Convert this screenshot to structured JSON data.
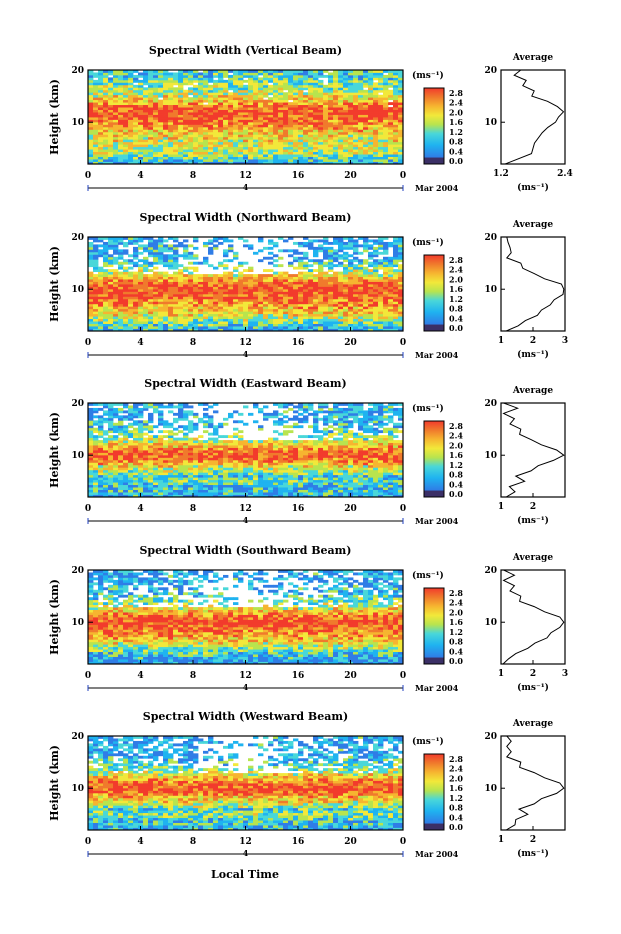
{
  "colors": {
    "background": "#ffffff",
    "frame": "#000000",
    "colorscale": [
      "#3b2f66",
      "#2f7de6",
      "#1fb3f0",
      "#49d7d9",
      "#b8e44e",
      "#f2e83a",
      "#f6b530",
      "#f07a2c",
      "#f23b2c"
    ]
  },
  "common": {
    "ylabel": "Height (km)",
    "colorbar_unit": "(ms⁻¹)",
    "date_label": "Mar 2004",
    "day_label": "4",
    "xlabel": "Local Time",
    "avg_title": "Average",
    "avg_unit": "(ms⁻¹)"
  },
  "chart_data": [
    {
      "type": "heatmap",
      "title": "Spectral Width (Vertical Beam)",
      "xlabel": "Local Time",
      "ylabel": "Height (km)",
      "xlim": [
        0,
        24
      ],
      "ylim": [
        2,
        20
      ],
      "x_ticks": [
        "0",
        "4",
        "8",
        "12",
        "16",
        "20",
        "0"
      ],
      "y_ticks": [
        "10",
        "20"
      ],
      "colorbar": {
        "ticks": [
          "0.0",
          "0.4",
          "0.8",
          "1.2",
          "1.6",
          "2.0",
          "2.4",
          "2.8"
        ]
      },
      "profile": {
        "title": "Average",
        "xlim": [
          1.2,
          2.4
        ],
        "x_ticks": [
          "1.2",
          "2.4"
        ],
        "height": [
          2,
          4,
          6,
          8,
          9,
          10,
          11,
          12,
          13,
          14,
          15,
          16,
          17,
          18,
          19,
          20
        ],
        "value": [
          1.3,
          1.75,
          1.85,
          1.95,
          2.1,
          2.2,
          2.3,
          2.35,
          2.28,
          2.0,
          1.85,
          1.75,
          1.68,
          1.6,
          1.52,
          1.5
        ]
      }
    },
    {
      "type": "heatmap",
      "title": "Spectral Width (Northward Beam)",
      "xlabel": "Local Time",
      "ylabel": "Height (km)",
      "xlim": [
        0,
        24
      ],
      "ylim": [
        2,
        20
      ],
      "x_ticks": [
        "0",
        "4",
        "8",
        "12",
        "16",
        "20",
        "0"
      ],
      "y_ticks": [
        "10",
        "20"
      ],
      "colorbar": {
        "ticks": [
          "0.0",
          "0.4",
          "0.8",
          "1.2",
          "1.6",
          "2.0",
          "2.4",
          "2.8"
        ]
      },
      "profile": {
        "title": "Average",
        "xlim": [
          1,
          3
        ],
        "x_ticks": [
          "1",
          "2",
          "3"
        ],
        "height": [
          2,
          3,
          4,
          5,
          6,
          7,
          8,
          9,
          10,
          11,
          12,
          13,
          14,
          15,
          16,
          17,
          18,
          19,
          20
        ],
        "value": [
          1.2,
          1.5,
          1.8,
          2.1,
          2.3,
          2.5,
          2.7,
          2.9,
          3.0,
          2.85,
          2.4,
          2.0,
          1.8,
          1.5,
          1.3,
          1.2,
          1.4,
          1.1,
          1.3
        ]
      }
    },
    {
      "type": "heatmap",
      "title": "Spectral Width (Eastward Beam)",
      "xlabel": "Local Time",
      "ylabel": "Height (km)",
      "xlim": [
        0,
        24
      ],
      "ylim": [
        2,
        20
      ],
      "x_ticks": [
        "0",
        "4",
        "8",
        "12",
        "16",
        "20",
        "0"
      ],
      "y_ticks": [
        "10",
        "20"
      ],
      "colorbar": {
        "ticks": [
          "0.0",
          "0.4",
          "0.8",
          "1.2",
          "1.6",
          "2.0",
          "2.4",
          "2.8"
        ]
      },
      "profile": {
        "title": "Average",
        "xlim": [
          1,
          3
        ],
        "x_ticks": [
          "1",
          "2"
        ],
        "height": [
          2,
          3,
          4,
          5,
          6,
          7,
          8,
          9,
          10,
          11,
          12,
          13,
          14,
          15,
          16,
          17,
          18,
          19,
          20
        ],
        "value": [
          1.2,
          1.4,
          1.3,
          1.7,
          1.5,
          1.9,
          2.2,
          2.6,
          3.0,
          2.7,
          2.3,
          1.9,
          1.7,
          1.5,
          1.4,
          1.3,
          1.2,
          1.4,
          1.2
        ]
      }
    },
    {
      "type": "heatmap",
      "title": "Spectral Width (Southward Beam)",
      "xlabel": "Local Time",
      "ylabel": "Height (km)",
      "xlim": [
        0,
        24
      ],
      "ylim": [
        2,
        20
      ],
      "x_ticks": [
        "0",
        "4",
        "8",
        "12",
        "16",
        "20",
        "0"
      ],
      "y_ticks": [
        "10",
        "20"
      ],
      "colorbar": {
        "ticks": [
          "0.0",
          "0.4",
          "0.8",
          "1.2",
          "1.6",
          "2.0",
          "2.4",
          "2.8"
        ]
      },
      "profile": {
        "title": "Average",
        "xlim": [
          1,
          3
        ],
        "x_ticks": [
          "1",
          "2",
          "3"
        ],
        "height": [
          2,
          3,
          4,
          5,
          6,
          7,
          8,
          9,
          10,
          11,
          12,
          13,
          14,
          15,
          16,
          17,
          18,
          19,
          20
        ],
        "value": [
          1.1,
          1.2,
          1.5,
          1.8,
          2.1,
          2.4,
          2.6,
          2.8,
          3.0,
          2.8,
          2.4,
          2.0,
          1.7,
          1.5,
          1.4,
          1.3,
          1.2,
          1.3,
          1.2
        ]
      }
    },
    {
      "type": "heatmap",
      "title": "Spectral Width (Westward Beam)",
      "xlabel": "Local Time",
      "ylabel": "Height (km)",
      "xlim": [
        0,
        24
      ],
      "ylim": [
        2,
        20
      ],
      "x_ticks": [
        "0",
        "4",
        "8",
        "12",
        "16",
        "20",
        "0"
      ],
      "y_ticks": [
        "10",
        "20"
      ],
      "colorbar": {
        "ticks": [
          "0.0",
          "0.4",
          "0.8",
          "1.2",
          "1.6",
          "2.0",
          "2.4",
          "2.8"
        ]
      },
      "profile": {
        "title": "Average",
        "xlim": [
          1,
          3
        ],
        "x_ticks": [
          "1",
          "2"
        ],
        "height": [
          2,
          3,
          4,
          5,
          6,
          7,
          8,
          9,
          10,
          11,
          12,
          13,
          14,
          15,
          16,
          17,
          18,
          19,
          20
        ],
        "value": [
          1.2,
          1.4,
          1.5,
          1.8,
          1.6,
          2.0,
          2.3,
          2.7,
          3.0,
          2.8,
          2.4,
          2.0,
          1.7,
          1.5,
          1.3,
          1.2,
          1.3,
          1.2,
          1.3
        ]
      }
    }
  ]
}
